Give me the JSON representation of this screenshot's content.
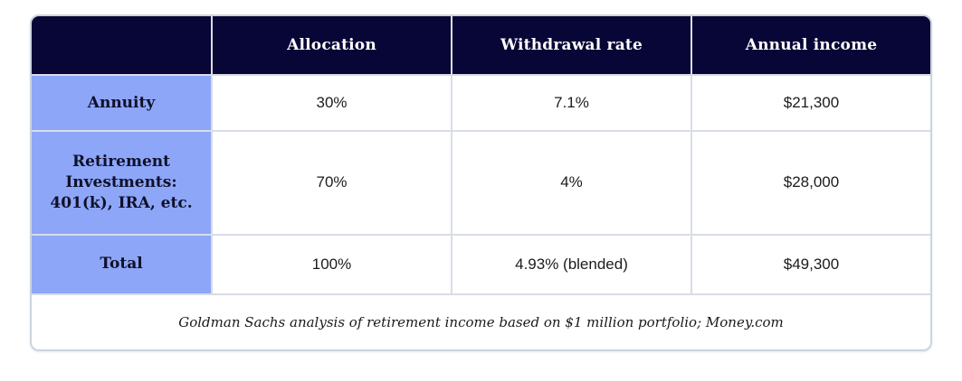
{
  "chart_data": {
    "type": "table",
    "columns": [
      "",
      "Allocation",
      "Withdrawal rate",
      "Annual income"
    ],
    "rows": [
      [
        "Annuity",
        "30%",
        "7.1%",
        "$21,300"
      ],
      [
        "Retirement Investments: 401(k), IRA, etc.",
        "70%",
        "4%",
        "$28,000"
      ],
      [
        "Total",
        "100%",
        "4.93% (blended)",
        "$49,300"
      ]
    ],
    "footnote": "Goldman Sachs analysis of retirement income based on $1 million portfolio; Money.com"
  },
  "colors": {
    "header_bg": "#080636",
    "header_text": "#ffffff",
    "row_label_bg": "#8da6f8",
    "row_label_text": "#10102a",
    "cell_text": "#1c1c1c",
    "grid_border": "#d9dde6",
    "card_border": "#ccd4dc",
    "card_bg": "#ffffff"
  }
}
